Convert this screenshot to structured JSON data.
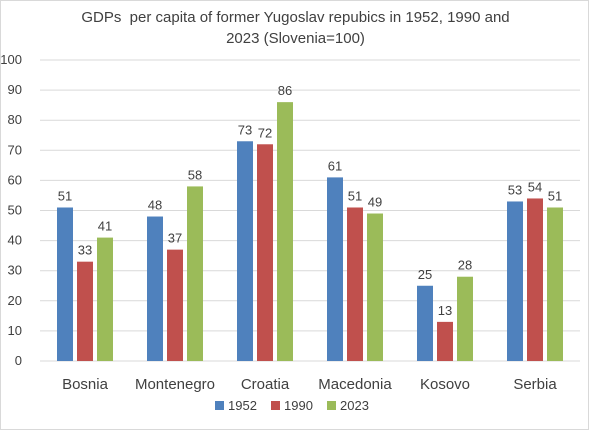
{
  "title_lines": [
    "GDPs  per capita of former Yugoslav repubics in 1952, 1990 and",
    "2023 (Slovenia=100)"
  ],
  "chart_data": {
    "type": "bar",
    "title": "GDPs  per capita of former Yugoslav repubics in 1952, 1990 and 2023 (Slovenia=100)",
    "categories": [
      "Bosnia",
      "Montenegro",
      "Croatia",
      "Macedonia",
      "Kosovo",
      "Serbia"
    ],
    "series": [
      {
        "name": "1952",
        "color": "#4f81bd",
        "values": [
          51,
          48,
          73,
          61,
          25,
          53
        ],
        "labels": [
          "51",
          "48",
          "73",
          "61",
          "25",
          "53"
        ]
      },
      {
        "name": "1990",
        "color": "#c0504d",
        "values": [
          33,
          37,
          72,
          51,
          13,
          54
        ],
        "labels": [
          "33",
          "37",
          "72",
          "51",
          "13",
          "54"
        ]
      },
      {
        "name": "2023",
        "color": "#9bbb59",
        "values": [
          41,
          58,
          86,
          49,
          28,
          51
        ],
        "labels": [
          "41",
          "58",
          "86",
          "49",
          "28",
          "51"
        ]
      }
    ],
    "ylim": [
      0,
      100
    ],
    "yticks": [
      0,
      10,
      20,
      30,
      40,
      50,
      60,
      70,
      80,
      90,
      100
    ],
    "grid": true,
    "legend_position": "bottom",
    "gridline_color": "#d9d9d9"
  }
}
